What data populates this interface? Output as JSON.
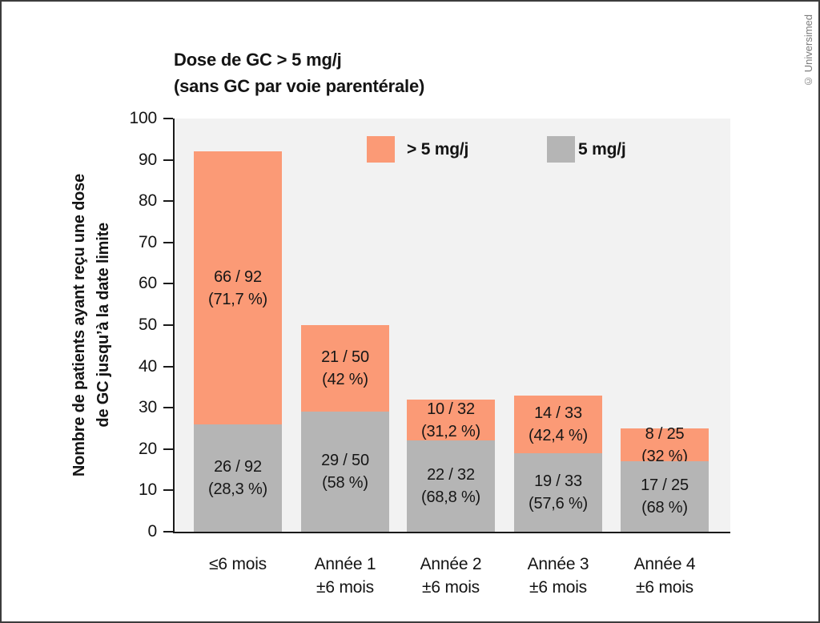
{
  "watermark": "© Universimed",
  "title": {
    "line1": "Dose de GC > 5 mg/j",
    "line2": "(sans GC par voie parentérale)"
  },
  "legend": [
    {
      "label": "> 5 mg/j",
      "color": "#FB9A76"
    },
    {
      "label": "5 mg/j",
      "color": "#B5B5B5"
    }
  ],
  "y_axis": {
    "title_line1": "Nombre de patients ayant reçu une dose",
    "title_line2": "de GC jusqu’à la date limite",
    "ticks": [
      0,
      10,
      20,
      30,
      40,
      50,
      60,
      70,
      80,
      90,
      100
    ],
    "max": 100
  },
  "chart_data": {
    "type": "bar",
    "stacked": true,
    "title": "Dose de GC > 5 mg/j (sans GC par voie parentérale)",
    "ylabel": "Nombre de patients ayant reçu une dose de GC jusqu’à la date limite",
    "ylim": [
      0,
      100
    ],
    "grid": false,
    "legend_position": "top-inside",
    "categories": [
      [
        "≤6 mois"
      ],
      [
        "Année 1",
        "±6 mois"
      ],
      [
        "Année 2",
        "±6 mois"
      ],
      [
        "Année 3",
        "±6 mois"
      ],
      [
        "Année 4",
        "±6 mois"
      ]
    ],
    "series": [
      {
        "name": "5 mg/j",
        "color": "#B5B5B5",
        "values": [
          26,
          29,
          22,
          19,
          17
        ],
        "labels": [
          [
            "26 / 92",
            "(28,3 %)"
          ],
          [
            "29 / 50",
            "(58 %)"
          ],
          [
            "22 / 32",
            "(68,8 %)"
          ],
          [
            "19 / 33",
            "(57,6 %)"
          ],
          [
            "17 / 25",
            "(68 %)"
          ]
        ]
      },
      {
        "name": "> 5 mg/j",
        "color": "#FB9A76",
        "values": [
          66,
          21,
          10,
          14,
          8
        ],
        "labels": [
          [
            "66 / 92",
            "(71,7 %)"
          ],
          [
            "21 / 50",
            "(42 %)"
          ],
          [
            "10 / 32",
            "(31,2 %)"
          ],
          [
            "14 / 33",
            "(42,4 %)"
          ],
          [
            "8 / 25",
            "(32 %)"
          ]
        ]
      }
    ]
  }
}
